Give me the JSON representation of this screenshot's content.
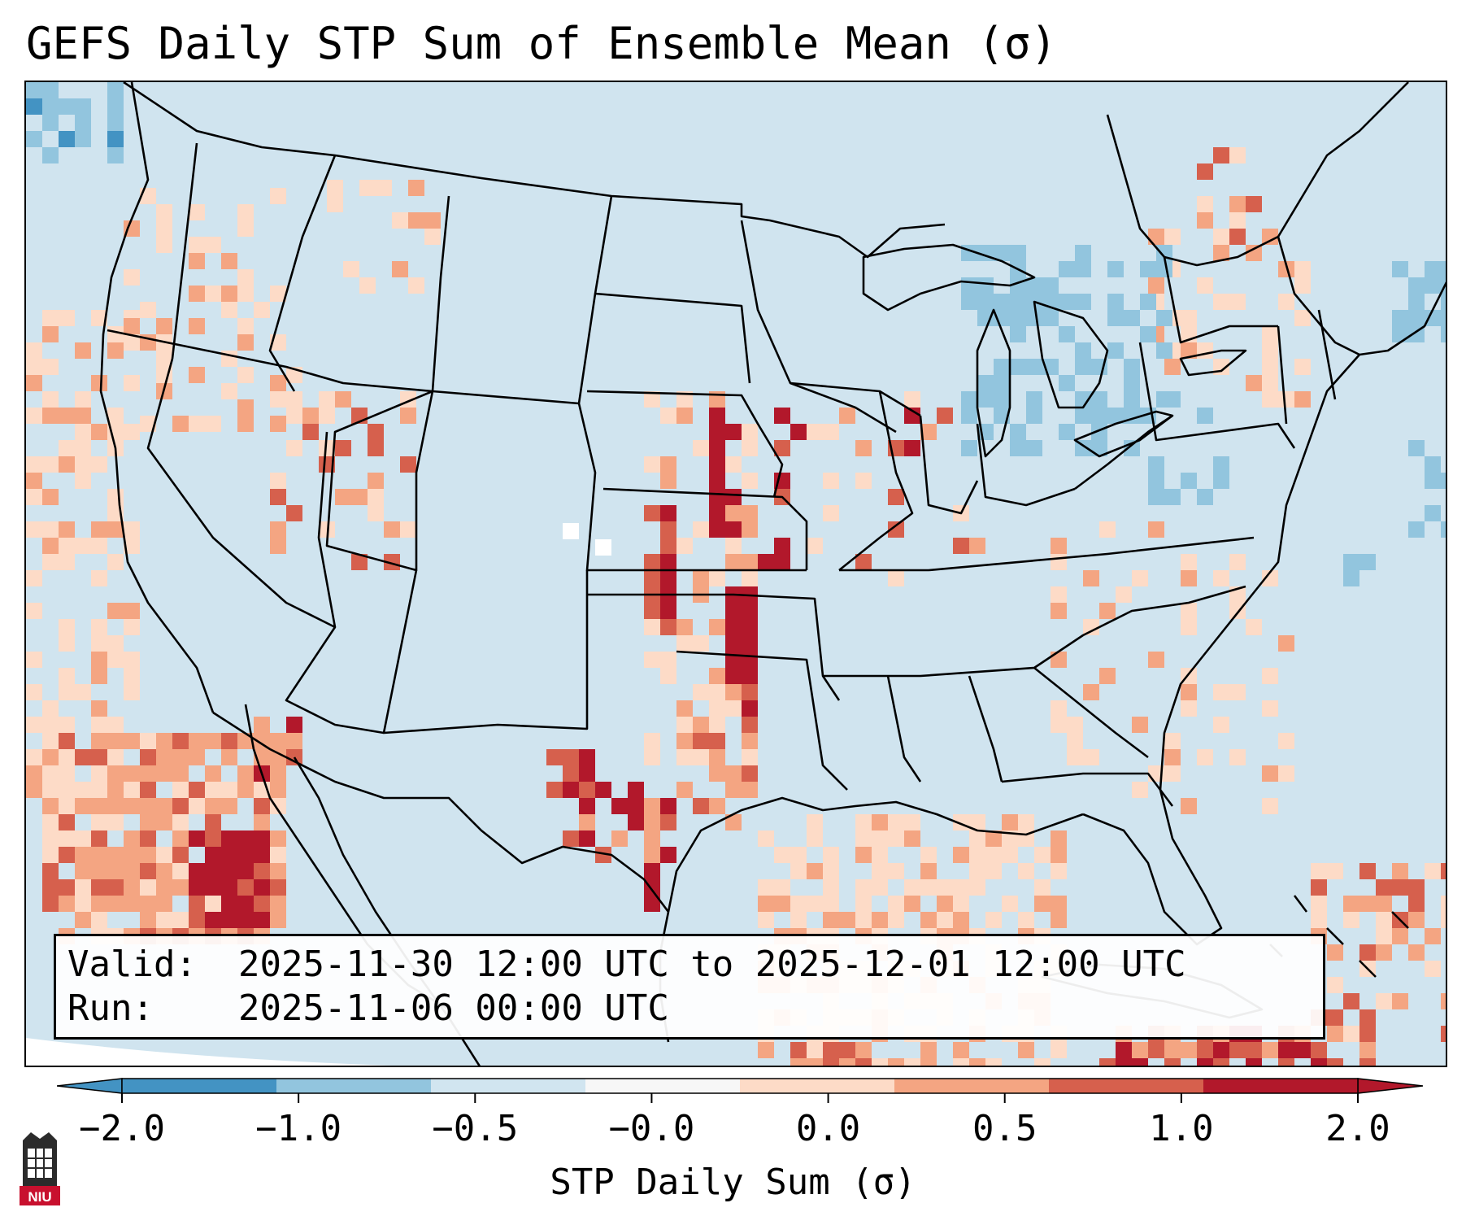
{
  "title": "GEFS Daily STP Sum of Ensemble Mean (σ)",
  "info": {
    "valid_label": "Valid:",
    "valid_value": "2025-11-30 12:00 UTC to 2025-12-01 12:00 UTC",
    "run_label": "Run:",
    "run_value": "2025-11-06 00:00 UTC"
  },
  "colorbar": {
    "label": "STP Daily Sum (σ)",
    "ticks": [
      "−2.0",
      "−1.0",
      "−0.5",
      "−0.0",
      "0.0",
      "0.5",
      "1.0",
      "2.0"
    ],
    "colors": [
      "#4393c3",
      "#92c5de",
      "#d1e5f0",
      "#f7f7f7",
      "#fddbc7",
      "#f4a582",
      "#d6604d",
      "#b2182b"
    ],
    "extend": "both"
  },
  "logo": {
    "text": "NIU"
  },
  "map": {
    "region": "Contiguous United States",
    "field": "STP daily sum anomaly (σ)",
    "highlights": [
      "Strong positive anomaly band from central Kansas south through western Oklahoma into north Texas",
      "Positive anomalies along the Pacific coast and offshore Baja California",
      "Negative anomalies over the Great Lakes and the western Atlantic"
    ]
  }
}
